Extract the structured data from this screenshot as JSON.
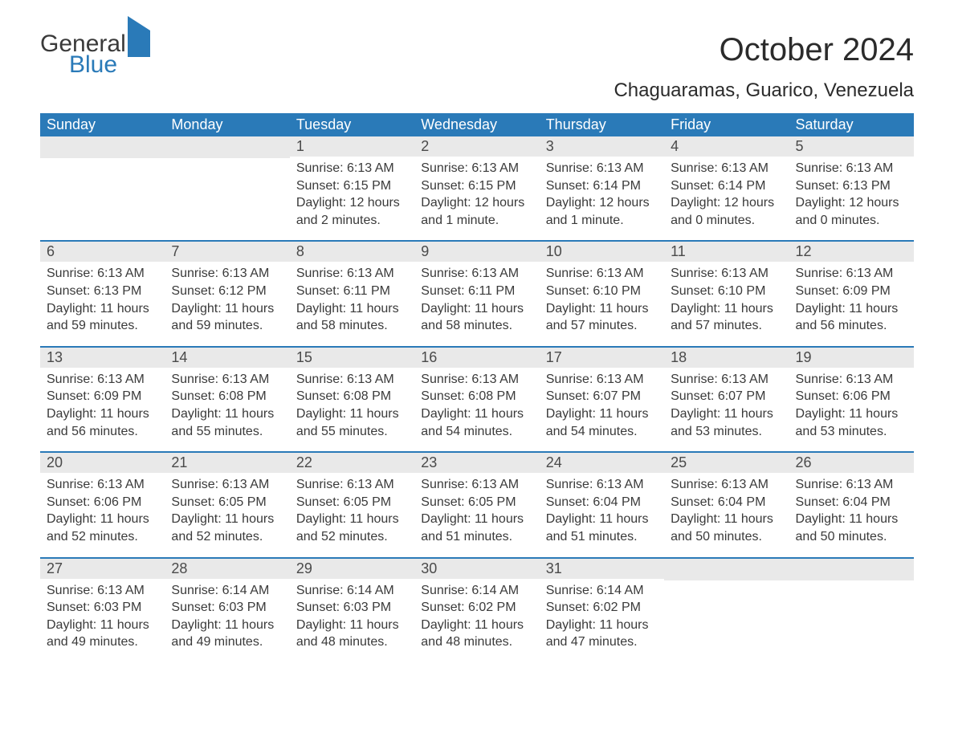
{
  "logo": {
    "word1": "General",
    "word2": "Blue"
  },
  "title": "October 2024",
  "location": "Chaguaramas, Guarico, Venezuela",
  "colors": {
    "header_bg": "#2a7ab8",
    "header_text": "#ffffff",
    "daynum_bg": "#e9e9e9",
    "text": "#3a3a3a",
    "week_border": "#2a7ab8"
  },
  "weekdays": [
    "Sunday",
    "Monday",
    "Tuesday",
    "Wednesday",
    "Thursday",
    "Friday",
    "Saturday"
  ],
  "weeks": [
    [
      {
        "num": "",
        "sunrise": "",
        "sunset": "",
        "daylight": ""
      },
      {
        "num": "",
        "sunrise": "",
        "sunset": "",
        "daylight": ""
      },
      {
        "num": "1",
        "sunrise": "Sunrise: 6:13 AM",
        "sunset": "Sunset: 6:15 PM",
        "daylight": "Daylight: 12 hours and 2 minutes."
      },
      {
        "num": "2",
        "sunrise": "Sunrise: 6:13 AM",
        "sunset": "Sunset: 6:15 PM",
        "daylight": "Daylight: 12 hours and 1 minute."
      },
      {
        "num": "3",
        "sunrise": "Sunrise: 6:13 AM",
        "sunset": "Sunset: 6:14 PM",
        "daylight": "Daylight: 12 hours and 1 minute."
      },
      {
        "num": "4",
        "sunrise": "Sunrise: 6:13 AM",
        "sunset": "Sunset: 6:14 PM",
        "daylight": "Daylight: 12 hours and 0 minutes."
      },
      {
        "num": "5",
        "sunrise": "Sunrise: 6:13 AM",
        "sunset": "Sunset: 6:13 PM",
        "daylight": "Daylight: 12 hours and 0 minutes."
      }
    ],
    [
      {
        "num": "6",
        "sunrise": "Sunrise: 6:13 AM",
        "sunset": "Sunset: 6:13 PM",
        "daylight": "Daylight: 11 hours and 59 minutes."
      },
      {
        "num": "7",
        "sunrise": "Sunrise: 6:13 AM",
        "sunset": "Sunset: 6:12 PM",
        "daylight": "Daylight: 11 hours and 59 minutes."
      },
      {
        "num": "8",
        "sunrise": "Sunrise: 6:13 AM",
        "sunset": "Sunset: 6:11 PM",
        "daylight": "Daylight: 11 hours and 58 minutes."
      },
      {
        "num": "9",
        "sunrise": "Sunrise: 6:13 AM",
        "sunset": "Sunset: 6:11 PM",
        "daylight": "Daylight: 11 hours and 58 minutes."
      },
      {
        "num": "10",
        "sunrise": "Sunrise: 6:13 AM",
        "sunset": "Sunset: 6:10 PM",
        "daylight": "Daylight: 11 hours and 57 minutes."
      },
      {
        "num": "11",
        "sunrise": "Sunrise: 6:13 AM",
        "sunset": "Sunset: 6:10 PM",
        "daylight": "Daylight: 11 hours and 57 minutes."
      },
      {
        "num": "12",
        "sunrise": "Sunrise: 6:13 AM",
        "sunset": "Sunset: 6:09 PM",
        "daylight": "Daylight: 11 hours and 56 minutes."
      }
    ],
    [
      {
        "num": "13",
        "sunrise": "Sunrise: 6:13 AM",
        "sunset": "Sunset: 6:09 PM",
        "daylight": "Daylight: 11 hours and 56 minutes."
      },
      {
        "num": "14",
        "sunrise": "Sunrise: 6:13 AM",
        "sunset": "Sunset: 6:08 PM",
        "daylight": "Daylight: 11 hours and 55 minutes."
      },
      {
        "num": "15",
        "sunrise": "Sunrise: 6:13 AM",
        "sunset": "Sunset: 6:08 PM",
        "daylight": "Daylight: 11 hours and 55 minutes."
      },
      {
        "num": "16",
        "sunrise": "Sunrise: 6:13 AM",
        "sunset": "Sunset: 6:08 PM",
        "daylight": "Daylight: 11 hours and 54 minutes."
      },
      {
        "num": "17",
        "sunrise": "Sunrise: 6:13 AM",
        "sunset": "Sunset: 6:07 PM",
        "daylight": "Daylight: 11 hours and 54 minutes."
      },
      {
        "num": "18",
        "sunrise": "Sunrise: 6:13 AM",
        "sunset": "Sunset: 6:07 PM",
        "daylight": "Daylight: 11 hours and 53 minutes."
      },
      {
        "num": "19",
        "sunrise": "Sunrise: 6:13 AM",
        "sunset": "Sunset: 6:06 PM",
        "daylight": "Daylight: 11 hours and 53 minutes."
      }
    ],
    [
      {
        "num": "20",
        "sunrise": "Sunrise: 6:13 AM",
        "sunset": "Sunset: 6:06 PM",
        "daylight": "Daylight: 11 hours and 52 minutes."
      },
      {
        "num": "21",
        "sunrise": "Sunrise: 6:13 AM",
        "sunset": "Sunset: 6:05 PM",
        "daylight": "Daylight: 11 hours and 52 minutes."
      },
      {
        "num": "22",
        "sunrise": "Sunrise: 6:13 AM",
        "sunset": "Sunset: 6:05 PM",
        "daylight": "Daylight: 11 hours and 52 minutes."
      },
      {
        "num": "23",
        "sunrise": "Sunrise: 6:13 AM",
        "sunset": "Sunset: 6:05 PM",
        "daylight": "Daylight: 11 hours and 51 minutes."
      },
      {
        "num": "24",
        "sunrise": "Sunrise: 6:13 AM",
        "sunset": "Sunset: 6:04 PM",
        "daylight": "Daylight: 11 hours and 51 minutes."
      },
      {
        "num": "25",
        "sunrise": "Sunrise: 6:13 AM",
        "sunset": "Sunset: 6:04 PM",
        "daylight": "Daylight: 11 hours and 50 minutes."
      },
      {
        "num": "26",
        "sunrise": "Sunrise: 6:13 AM",
        "sunset": "Sunset: 6:04 PM",
        "daylight": "Daylight: 11 hours and 50 minutes."
      }
    ],
    [
      {
        "num": "27",
        "sunrise": "Sunrise: 6:13 AM",
        "sunset": "Sunset: 6:03 PM",
        "daylight": "Daylight: 11 hours and 49 minutes."
      },
      {
        "num": "28",
        "sunrise": "Sunrise: 6:14 AM",
        "sunset": "Sunset: 6:03 PM",
        "daylight": "Daylight: 11 hours and 49 minutes."
      },
      {
        "num": "29",
        "sunrise": "Sunrise: 6:14 AM",
        "sunset": "Sunset: 6:03 PM",
        "daylight": "Daylight: 11 hours and 48 minutes."
      },
      {
        "num": "30",
        "sunrise": "Sunrise: 6:14 AM",
        "sunset": "Sunset: 6:02 PM",
        "daylight": "Daylight: 11 hours and 48 minutes."
      },
      {
        "num": "31",
        "sunrise": "Sunrise: 6:14 AM",
        "sunset": "Sunset: 6:02 PM",
        "daylight": "Daylight: 11 hours and 47 minutes."
      },
      {
        "num": "",
        "sunrise": "",
        "sunset": "",
        "daylight": ""
      },
      {
        "num": "",
        "sunrise": "",
        "sunset": "",
        "daylight": ""
      }
    ]
  ]
}
